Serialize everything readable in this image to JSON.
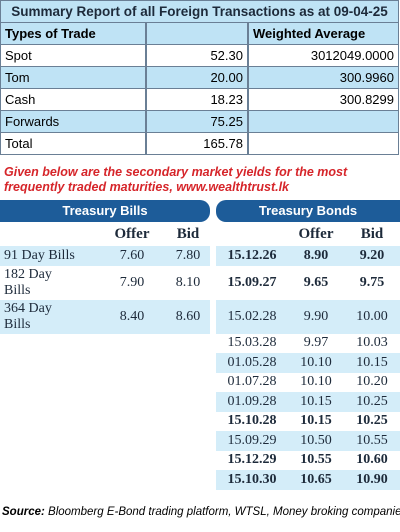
{
  "summary": {
    "title": "Summary Report of all Foreign Transactions as at 09-04-25",
    "header": [
      "Types of Trade",
      "Weighted Average"
    ],
    "rows": [
      [
        "Spot",
        "52.30",
        "3012049.0000"
      ],
      [
        "Tom",
        "20.00",
        "300.9960"
      ],
      [
        "Cash",
        "18.23",
        "300.8299"
      ],
      [
        "Forwards",
        "75.25"
      ],
      [
        "Total",
        "165.78"
      ]
    ]
  },
  "note": "Given below are the secondary market yields for the most frequently traded maturities, www.wealthtrust.lk",
  "yields": {
    "bills_title": "Treasury Bills",
    "bonds_title": "Treasury Bonds",
    "columns": [
      "Offer",
      "Bid"
    ],
    "bills": [
      {
        "label": "91 Day Bills",
        "offer": "7.60",
        "bid": "7.80"
      },
      {
        "label": "182 Day Bills",
        "offer": "7.90",
        "bid": "8.10"
      },
      {
        "label": "364 Day Bills",
        "offer": "8.40",
        "bid": "8.60"
      }
    ],
    "bonds": [
      {
        "date": "15.12.26",
        "offer": "8.90",
        "bid": "9.20",
        "bold": true
      },
      {
        "date": "15.09.27",
        "offer": "9.65",
        "bid": "9.75",
        "bold": true
      },
      {
        "date": "15.02.28",
        "offer": "9.90",
        "bid": "10.00",
        "bold": false
      },
      {
        "date": "15.03.28",
        "offer": "9.97",
        "bid": "10.03",
        "bold": false
      },
      {
        "date": "01.05.28",
        "offer": "10.10",
        "bid": "10.15",
        "bold": false
      },
      {
        "date": "01.07.28",
        "offer": "10.10",
        "bid": "10.20",
        "bold": false
      },
      {
        "date": "01.09.28",
        "offer": "10.15",
        "bid": "10.25",
        "bold": false
      },
      {
        "date": "15.10.28",
        "offer": "10.15",
        "bid": "10.25",
        "bold": true
      },
      {
        "date": "15.09.29",
        "offer": "10.50",
        "bid": "10.55",
        "bold": false
      },
      {
        "date": "15.12.29",
        "offer": "10.55",
        "bid": "10.60",
        "bold": true
      },
      {
        "date": "15.10.30",
        "offer": "10.65",
        "bid": "10.90",
        "bold": true
      }
    ]
  },
  "source": {
    "label": "Source:",
    "text": " Bloomberg E-Bond trading platform, WTSL, Money broking companies"
  }
}
